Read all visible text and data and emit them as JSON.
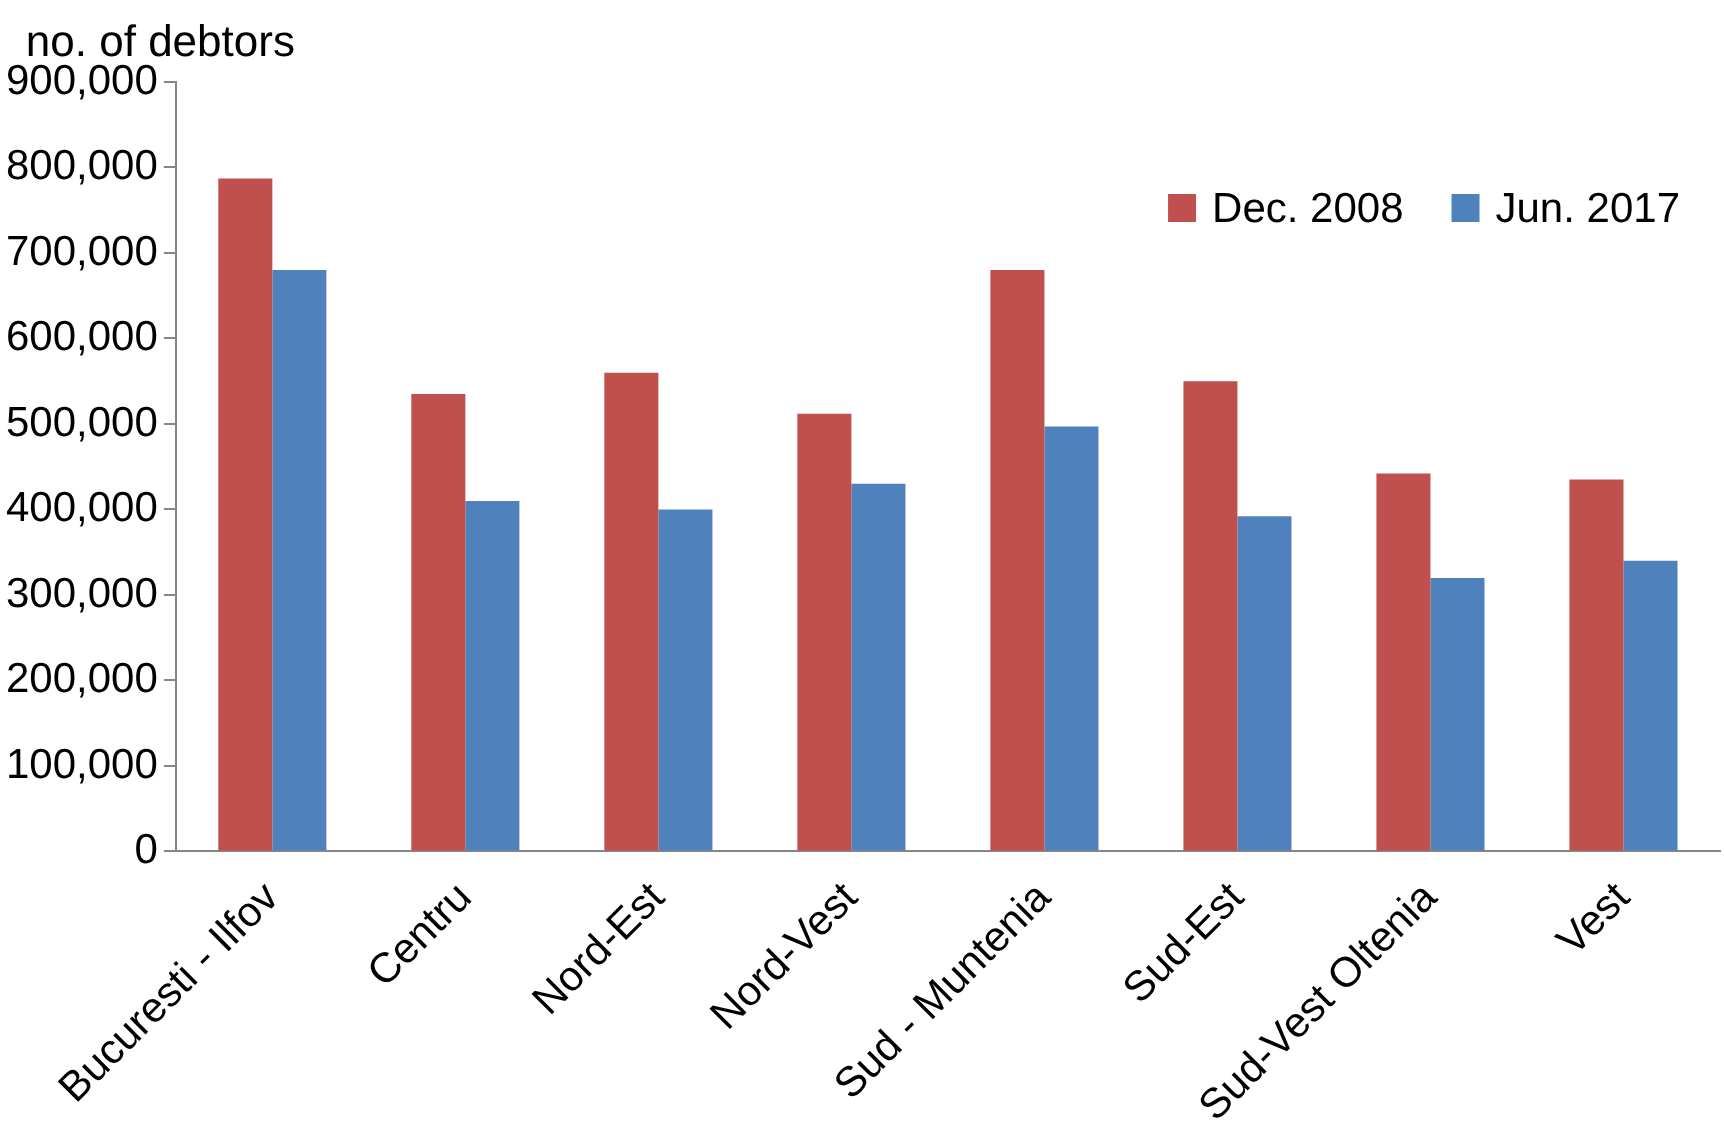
{
  "chart_data": {
    "type": "bar",
    "ylabel": "no. of debtors",
    "categories": [
      "Bucuresti - Ilfov",
      "Centru",
      "Nord-Est",
      "Nord-Vest",
      "Sud - Muntenia",
      "Sud-Est",
      "Sud-Vest Oltenia",
      "Vest"
    ],
    "series": [
      {
        "name": "Dec. 2008",
        "color": "#c0504d",
        "values": [
          787000,
          535000,
          560000,
          512000,
          680000,
          550000,
          442000,
          435000
        ]
      },
      {
        "name": "Jun. 2017",
        "color": "#4f81bd",
        "values": [
          680000,
          410000,
          400000,
          430000,
          497000,
          392000,
          320000,
          340000
        ]
      }
    ],
    "ylim": [
      0,
      900000
    ],
    "yticks": [
      0,
      {
        "value": 100000,
        "label": "100,000"
      },
      {
        "value": 200000,
        "label": "200,000"
      },
      {
        "value": 300000,
        "label": "300,000"
      },
      {
        "value": 400000,
        "label": "400,000"
      },
      {
        "value": 500000,
        "label": "500,000"
      },
      {
        "value": 600000,
        "label": "600,000"
      },
      {
        "value": 700000,
        "label": "700,000"
      },
      {
        "value": 800000,
        "label": "800,000"
      },
      {
        "value": 900000,
        "label": "900,000"
      }
    ],
    "grid": false,
    "legend": "top right"
  }
}
